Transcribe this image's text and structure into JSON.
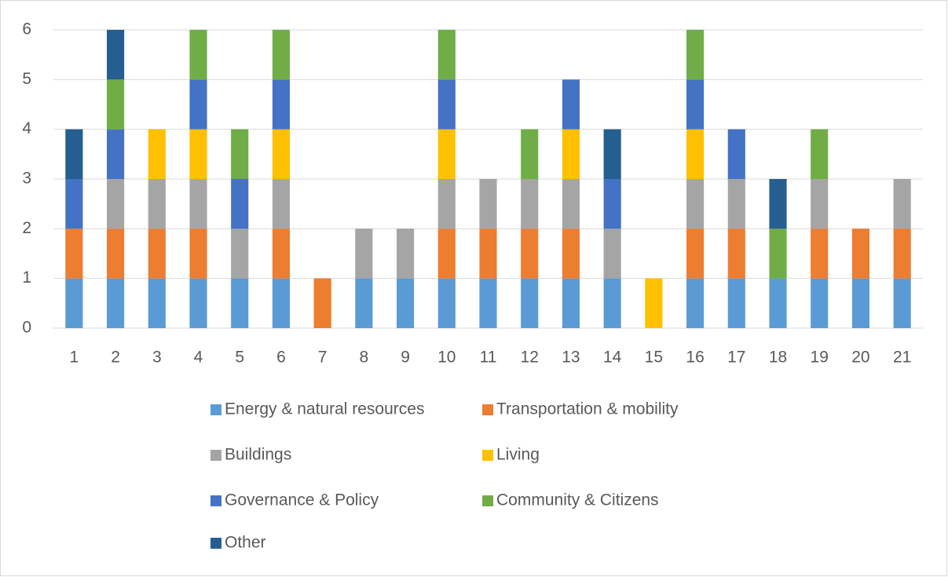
{
  "chart_data": {
    "type": "bar",
    "stacked": true,
    "categories": [
      "1",
      "2",
      "3",
      "4",
      "5",
      "6",
      "7",
      "8",
      "9",
      "10",
      "11",
      "12",
      "13",
      "14",
      "15",
      "16",
      "17",
      "18",
      "19",
      "20",
      "21"
    ],
    "series": [
      {
        "name": "Energy & natural resources",
        "color": "#5b9bd5",
        "values": [
          1,
          1,
          1,
          1,
          1,
          1,
          0,
          1,
          1,
          1,
          1,
          1,
          1,
          1,
          0,
          1,
          1,
          1,
          1,
          1,
          1
        ]
      },
      {
        "name": "Transportation & mobility",
        "color": "#ed7d31",
        "values": [
          1,
          1,
          1,
          1,
          0,
          1,
          1,
          0,
          0,
          1,
          1,
          1,
          1,
          0,
          0,
          1,
          1,
          0,
          1,
          1,
          1
        ]
      },
      {
        "name": "Buildings",
        "color": "#a5a5a5",
        "values": [
          0,
          1,
          1,
          1,
          1,
          1,
          0,
          1,
          1,
          1,
          1,
          1,
          1,
          1,
          0,
          1,
          1,
          0,
          1,
          0,
          1
        ]
      },
      {
        "name": "Living",
        "color": "#ffc000",
        "values": [
          0,
          0,
          1,
          1,
          0,
          1,
          0,
          0,
          0,
          1,
          0,
          0,
          1,
          0,
          1,
          1,
          0,
          0,
          0,
          0,
          0
        ]
      },
      {
        "name": "Governance & Policy",
        "color": "#4472c4",
        "values": [
          1,
          1,
          0,
          1,
          1,
          1,
          0,
          0,
          0,
          1,
          0,
          0,
          1,
          1,
          0,
          1,
          1,
          0,
          0,
          0,
          0
        ]
      },
      {
        "name": "Community & Citizens",
        "color": "#70ad47",
        "values": [
          0,
          1,
          0,
          1,
          1,
          1,
          0,
          0,
          0,
          1,
          0,
          1,
          0,
          0,
          0,
          1,
          0,
          1,
          1,
          0,
          0
        ]
      },
      {
        "name": "Other",
        "color": "#255e91",
        "values": [
          1,
          1,
          0,
          0,
          0,
          0,
          0,
          0,
          0,
          0,
          0,
          0,
          0,
          1,
          0,
          0,
          0,
          1,
          0,
          0,
          0
        ]
      }
    ],
    "ylim": [
      0,
      6
    ],
    "yticks": [
      0,
      1,
      2,
      3,
      4,
      5,
      6
    ],
    "grid": true,
    "legend": "bottom"
  }
}
